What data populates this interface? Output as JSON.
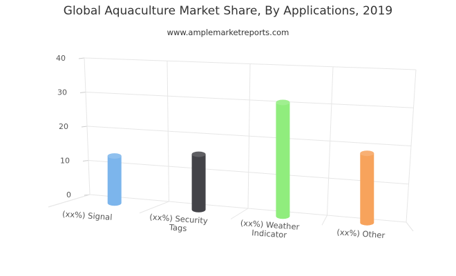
{
  "chart_data": {
    "type": "bar",
    "title": "Global Aquaculture Market Share, By Applications, 2019",
    "subtitle": "www.amplemarketreports.com",
    "xlabel": "",
    "ylabel": "",
    "ylim": [
      0,
      40
    ],
    "yticks": [
      0,
      10,
      20,
      30,
      40
    ],
    "grid": true,
    "categories": [
      "(xx%) Signal",
      "(xx%) Security Tags",
      "(xx%) Weather Indicator",
      "(xx%) Other"
    ],
    "category_lines": [
      [
        "(xx%) Signal"
      ],
      [
        "(xx%) Security",
        "Tags"
      ],
      [
        "(xx%) Weather",
        "Indicator"
      ],
      [
        "(xx%) Other"
      ]
    ],
    "values": [
      14,
      16,
      32,
      19
    ],
    "colors": [
      "#7cb5ec",
      "#434348",
      "#90ed7d",
      "#f7a35c"
    ]
  }
}
